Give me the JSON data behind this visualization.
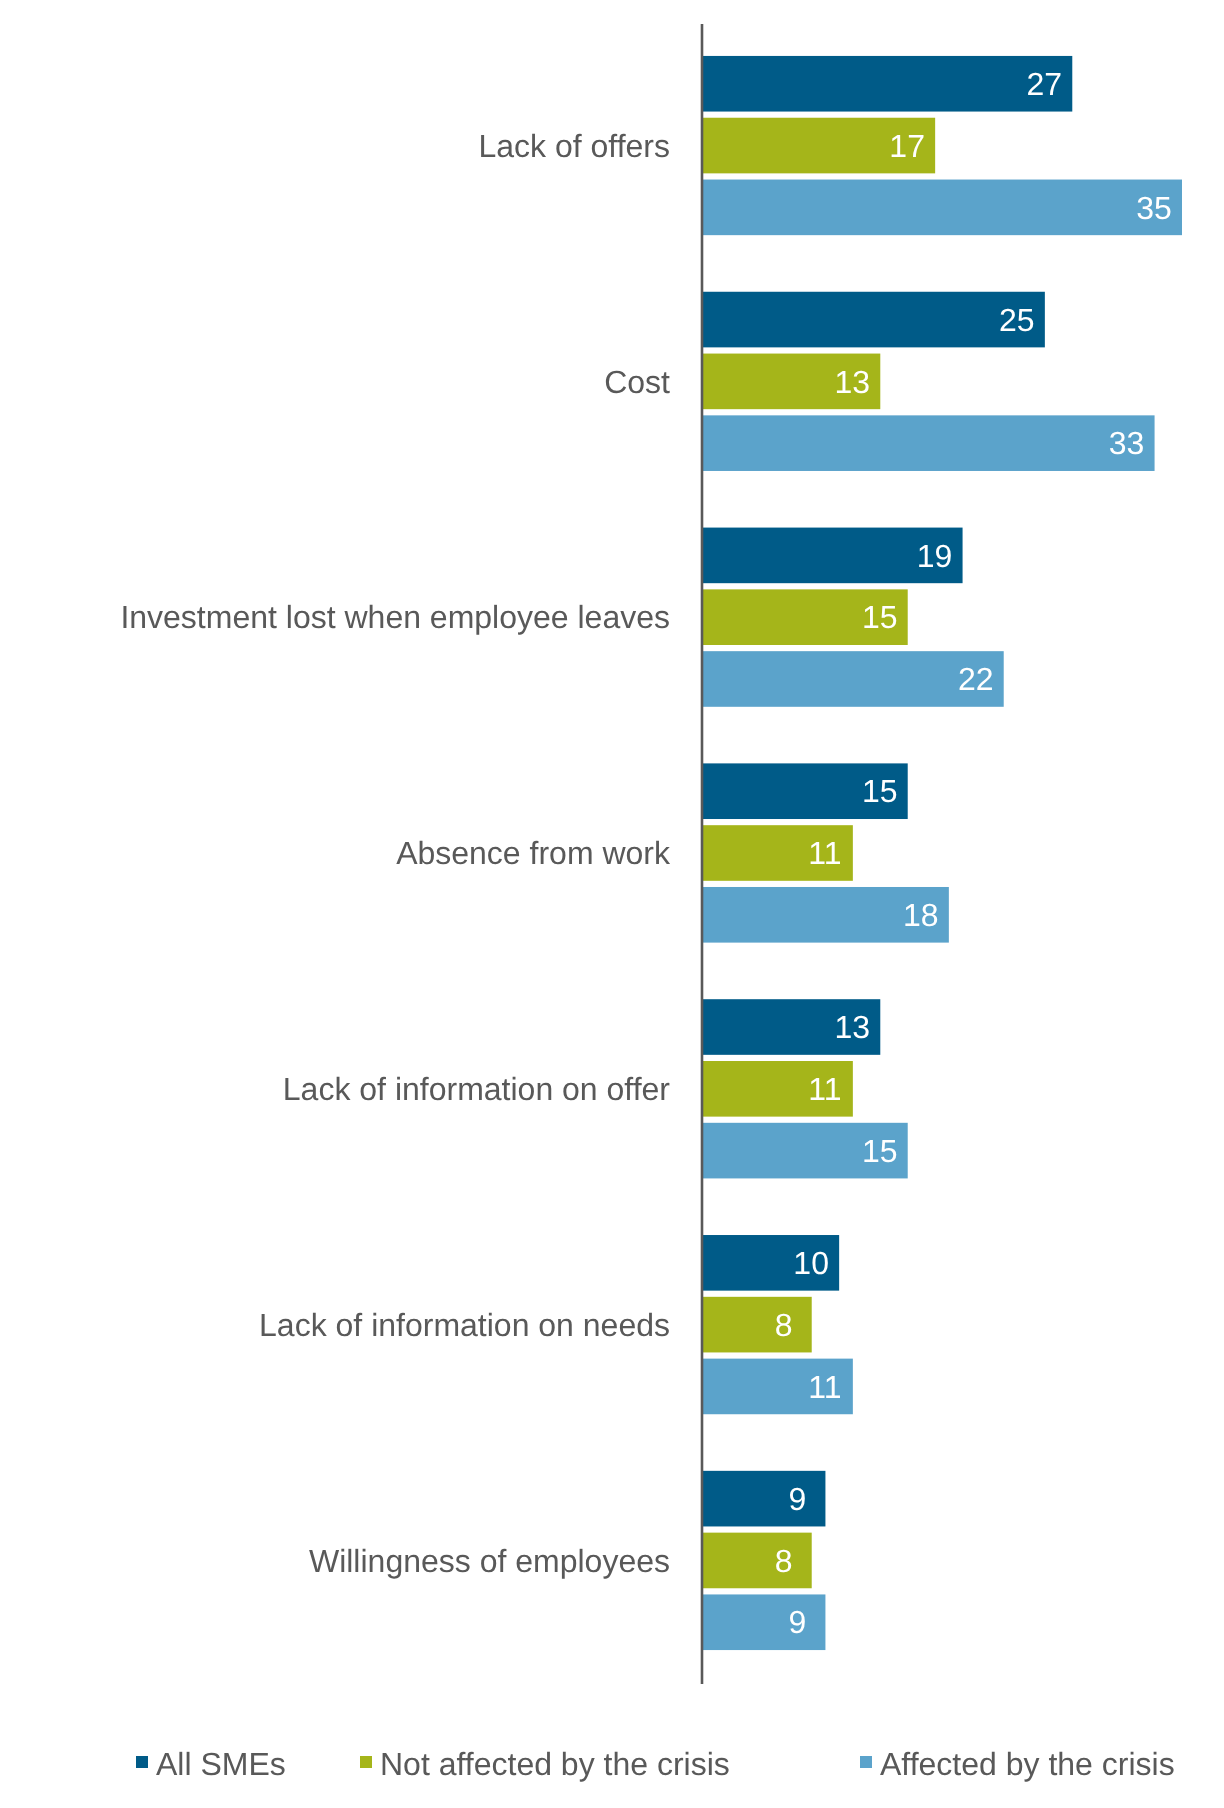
{
  "chart_data": {
    "type": "bar",
    "orientation": "horizontal",
    "data_labels": true,
    "legend": "bottom",
    "categories": [
      "Lack of offers",
      "Cost",
      "Investment lost when employee leaves",
      "Absence from work",
      "Lack of information on offer",
      "Lack of information on needs",
      "Willingness of employees"
    ],
    "series": [
      {
        "name": "All SMEs",
        "color": "#005b88",
        "values": [
          27,
          25,
          19,
          15,
          13,
          10,
          9
        ]
      },
      {
        "name": "Not affected by the crisis",
        "color": "#a5b51a",
        "values": [
          17,
          13,
          15,
          11,
          11,
          8,
          8
        ]
      },
      {
        "name": "Affected by the crisis",
        "color": "#5ba3cb",
        "values": [
          35,
          33,
          22,
          18,
          15,
          11,
          9
        ]
      }
    ]
  }
}
